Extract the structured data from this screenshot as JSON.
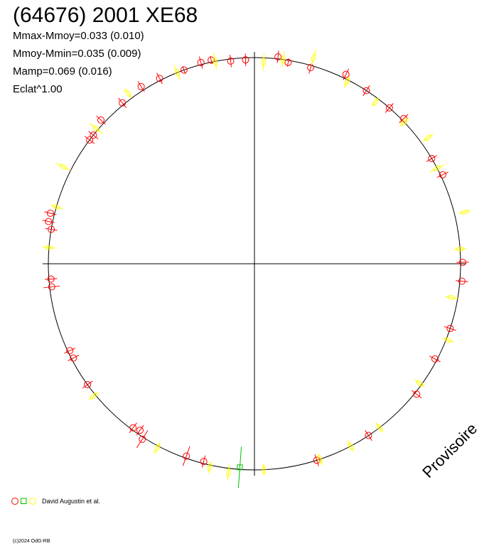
{
  "header": {
    "title": "(64676) 2001 XE68",
    "stats": [
      "Mmax-Mmoy=0.033 (0.010)",
      "Mmoy-Mmin=0.035 (0.009)",
      "Mamp=0.069 (0.016)",
      "Eclat^1.00"
    ]
  },
  "watermark": "Provisoire",
  "legend": {
    "text": "David Augustin et al.",
    "colors": {
      "red": "#ff0000",
      "green": "#00c000",
      "yellow": "#ffff00"
    }
  },
  "copyright": "(c)2024 OdG-RB",
  "chart_data": {
    "type": "polar-phase",
    "title": "(64676) 2001 XE68",
    "xlim": [
      -1.1,
      1.1
    ],
    "ylim": [
      -1.1,
      1.1
    ],
    "grid": false,
    "axes": "crosshair",
    "series": [
      {
        "name": "red",
        "marker": "circle",
        "color": "#ff0000",
        "points": [
          {
            "angle": 83.5,
            "r": 1.01,
            "err": 0.03
          },
          {
            "angle": 80.5,
            "r": 0.99,
            "err": 0.02
          },
          {
            "angle": 74.0,
            "r": 0.99,
            "err": 0.03
          },
          {
            "angle": 92.5,
            "r": 0.99,
            "err": 0.03
          },
          {
            "angle": 96.7,
            "r": 0.99,
            "err": 0.03
          },
          {
            "angle": 102.0,
            "r": 1.01,
            "err": 0.02
          },
          {
            "angle": 104.9,
            "r": 1.01,
            "err": 0.03
          },
          {
            "angle": 110.0,
            "r": 1.0,
            "err": 0.02
          },
          {
            "angle": 117.1,
            "r": 1.01,
            "err": 0.03
          },
          {
            "angle": 122.6,
            "r": 1.02,
            "err": 0.03
          },
          {
            "angle": 129.4,
            "r": 1.01,
            "err": 0.03
          },
          {
            "angle": 136.9,
            "r": 1.02,
            "err": 0.03
          },
          {
            "angle": 141.4,
            "r": 1.0,
            "err": 0.03
          },
          {
            "angle": 143.1,
            "r": 1.0,
            "err": 0.03
          },
          {
            "angle": 166.1,
            "r": 1.02,
            "err": 0.03
          },
          {
            "angle": 168.4,
            "r": 1.02,
            "err": 0.03
          },
          {
            "angle": 170.4,
            "r": 1.0,
            "err": 0.03
          },
          {
            "angle": 184.3,
            "r": 0.99,
            "err": 0.03
          },
          {
            "angle": 186.5,
            "r": 0.99,
            "err": 0.04
          },
          {
            "angle": 205.2,
            "r": 0.99,
            "err": 0.03
          },
          {
            "angle": 207.5,
            "r": 0.99,
            "err": 0.03
          },
          {
            "angle": 215.9,
            "r": 1.0,
            "err": 0.03
          },
          {
            "angle": 233.5,
            "r": 0.99,
            "err": 0.03
          },
          {
            "angle": 235.5,
            "r": 0.98,
            "err": 0.03
          },
          {
            "angle": 237.4,
            "r": 1.01,
            "err": 0.05
          },
          {
            "angle": 250.5,
            "r": 0.99,
            "err": 0.05
          },
          {
            "angle": 255.6,
            "r": 0.99,
            "err": 0.03
          },
          {
            "angle": 287.6,
            "r": 1.0,
            "err": 0.03
          },
          {
            "angle": 303.6,
            "r": 1.0,
            "err": 0.03
          },
          {
            "angle": 321.2,
            "r": 1.01,
            "err": 0.03
          },
          {
            "angle": 332.2,
            "r": 0.99,
            "err": 0.03
          },
          {
            "angle": 341.7,
            "r": 1.0,
            "err": 0.03
          },
          {
            "angle": 355.2,
            "r": 1.01,
            "err": 0.03
          },
          {
            "angle": 0.4,
            "r": 1.01,
            "err": 0.03
          },
          {
            "angle": 25.3,
            "r": 1.01,
            "err": 0.03
          },
          {
            "angle": 30.7,
            "r": 1.0,
            "err": 0.03
          },
          {
            "angle": 44.2,
            "r": 1.01,
            "err": 0.03
          },
          {
            "angle": 49.1,
            "r": 1.0,
            "err": 0.03
          },
          {
            "angle": 57.1,
            "r": 1.0,
            "err": 0.03
          },
          {
            "angle": 64.2,
            "r": 1.02,
            "err": 0.03
          }
        ]
      },
      {
        "name": "green",
        "marker": "square",
        "color": "#00c000",
        "points": [
          {
            "angle": 265.9,
            "r": 0.99,
            "err": 0.1
          }
        ]
      },
      {
        "name": "yellow",
        "marker": "diamond",
        "color": "#ffff00",
        "points": [
          {
            "angle": 87.4,
            "r": 0.98,
            "err": 0.04
          },
          {
            "angle": 101.0,
            "r": 1.0,
            "err": 0.04
          },
          {
            "angle": 112.0,
            "r": 1.0,
            "err": 0.04
          },
          {
            "angle": 126.6,
            "r": 1.03,
            "err": 0.03
          },
          {
            "angle": 139.5,
            "r": 1.01,
            "err": 0.04
          },
          {
            "angle": 153.1,
            "r": 1.04,
            "err": 0.04
          },
          {
            "angle": 164.0,
            "r": 1.0,
            "err": 0.03
          },
          {
            "angle": 175.5,
            "r": 1.0,
            "err": 0.03
          },
          {
            "angle": 219.4,
            "r": 1.01,
            "err": 0.03
          },
          {
            "angle": 242.2,
            "r": 1.01,
            "err": 0.03
          },
          {
            "angle": 257.6,
            "r": 1.01,
            "err": 0.03
          },
          {
            "angle": 262.9,
            "r": 1.02,
            "err": 0.04
          },
          {
            "angle": 272.6,
            "r": 1.0,
            "err": 0.03
          },
          {
            "angle": 288.6,
            "r": 1.0,
            "err": 0.03
          },
          {
            "angle": 297.8,
            "r": 1.0,
            "err": 0.03
          },
          {
            "angle": 307.4,
            "r": 1.0,
            "err": 0.03
          },
          {
            "angle": 324.1,
            "r": 0.99,
            "err": 0.03
          },
          {
            "angle": 338.5,
            "r": 1.01,
            "err": 0.03
          },
          {
            "angle": 350.3,
            "r": 0.97,
            "err": 0.03
          },
          {
            "angle": 4.1,
            "r": 1.0,
            "err": 0.03
          },
          {
            "angle": 13.8,
            "r": 1.05,
            "err": 0.03
          },
          {
            "angle": 27.6,
            "r": 1.0,
            "err": 0.04
          },
          {
            "angle": 36.0,
            "r": 1.04,
            "err": 0.03
          },
          {
            "angle": 43.4,
            "r": 1.0,
            "err": 0.03
          },
          {
            "angle": 53.2,
            "r": 0.98,
            "err": 0.03
          },
          {
            "angle": 63.0,
            "r": 0.99,
            "err": 0.03
          },
          {
            "angle": 74.0,
            "r": 1.04,
            "err": 0.04
          },
          {
            "angle": 82.0,
            "r": 1.0,
            "err": 0.04
          }
        ]
      }
    ]
  }
}
